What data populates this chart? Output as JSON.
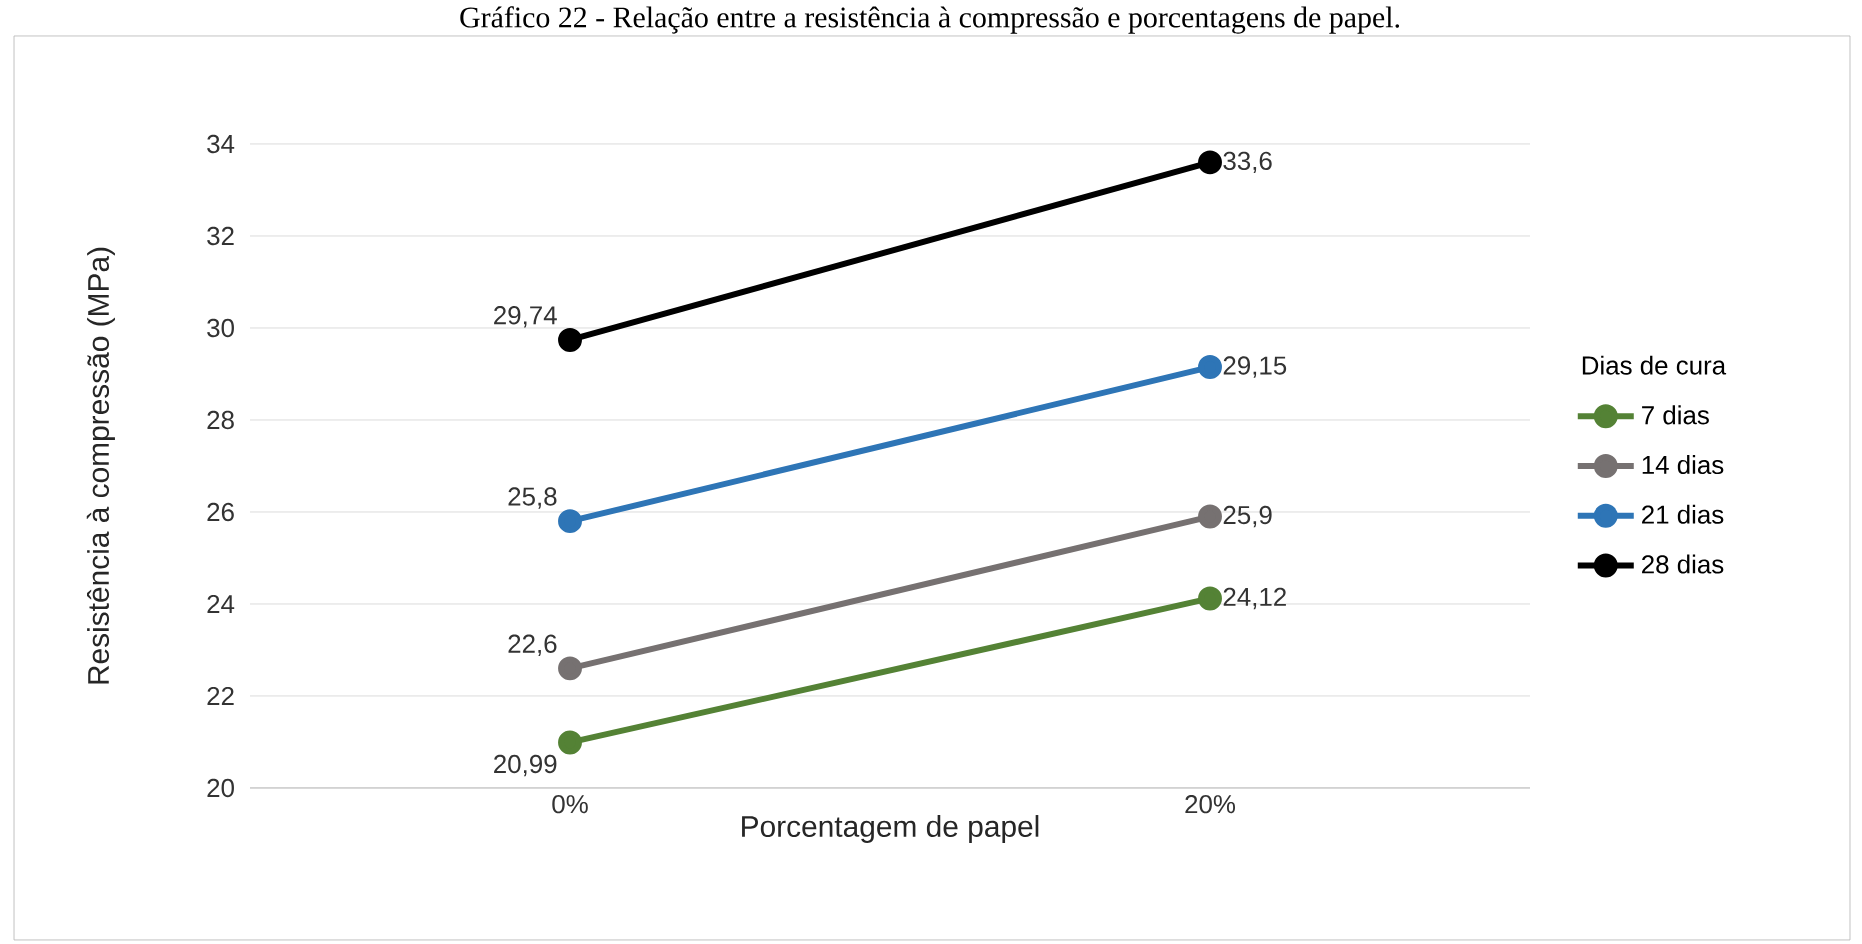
{
  "chart_data": {
    "type": "line",
    "title": "Gráfico 22 - Relação entre a resistência à compressão e porcentagens de papel.",
    "xlabel": "Porcentagem de papel",
    "ylabel": "Resistência à compressão (MPa)",
    "legend_title": "Dias de cura",
    "categories": [
      "0%",
      "20%"
    ],
    "series": [
      {
        "name": "7 dias",
        "color": "#548235",
        "values": [
          20.99,
          24.12
        ],
        "value_labels": [
          "20,99",
          "24,12"
        ]
      },
      {
        "name": "14 dias",
        "color": "#767171",
        "values": [
          22.6,
          25.9
        ],
        "value_labels": [
          "22,6",
          "25,9"
        ]
      },
      {
        "name": "21 dias",
        "color": "#2e75b6",
        "values": [
          25.8,
          29.15
        ],
        "value_labels": [
          "25,8",
          "29,15"
        ]
      },
      {
        "name": "28 dias",
        "color": "#000000",
        "values": [
          29.74,
          33.6
        ],
        "value_labels": [
          "29,74",
          "33,6"
        ]
      }
    ],
    "ylim": [
      20,
      34
    ],
    "yticks": [
      20,
      22,
      24,
      26,
      28,
      30,
      32,
      34
    ],
    "grid": "y",
    "legend": "right",
    "marker": "circle",
    "line_style": "solid"
  }
}
